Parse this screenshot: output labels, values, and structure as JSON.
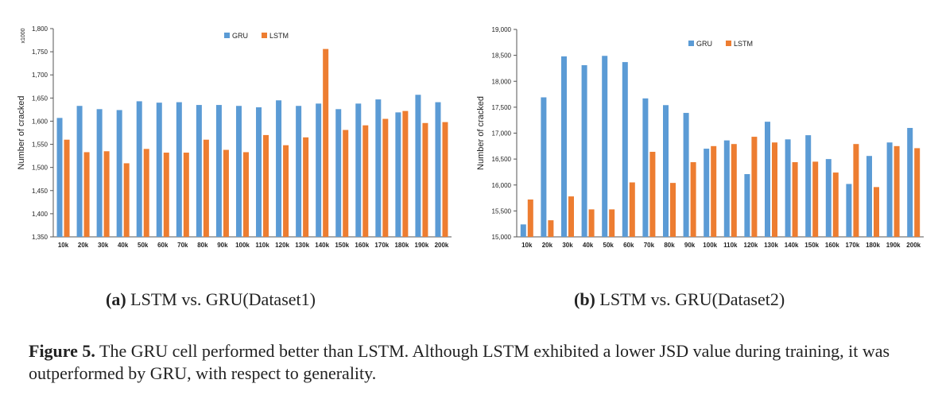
{
  "chart_data": [
    {
      "id": "a",
      "type": "bar",
      "ylabel": "Number of cracked",
      "y_unit": "x1000",
      "ylim": [
        1350,
        1800
      ],
      "yticks": [
        "1,350",
        "1,400",
        "1,450",
        "1,500",
        "1,550",
        "1,600",
        "1,650",
        "1,700",
        "1,750",
        "1,800"
      ],
      "ytick_values": [
        1350,
        1400,
        1450,
        1500,
        1550,
        1600,
        1650,
        1700,
        1750,
        1800
      ],
      "legend_position": "top-center",
      "categories": [
        "10k",
        "20k",
        "30k",
        "40k",
        "50k",
        "60k",
        "70k",
        "80k",
        "90k",
        "100k",
        "110k",
        "120k",
        "130k",
        "140k",
        "150k",
        "160k",
        "170k",
        "180k",
        "190k",
        "200k"
      ],
      "series": [
        {
          "name": "GRU",
          "color": "#5B9BD5",
          "values": [
            1607,
            1633,
            1626,
            1624,
            1643,
            1640,
            1641,
            1635,
            1635,
            1633,
            1630,
            1645,
            1633,
            1638,
            1626,
            1638,
            1647,
            1619,
            1657,
            1641
          ]
        },
        {
          "name": "LSTM",
          "color": "#ED7D31",
          "values": [
            1560,
            1533,
            1535,
            1509,
            1540,
            1532,
            1532,
            1560,
            1538,
            1533,
            1570,
            1548,
            1565,
            1756,
            1581,
            1591,
            1605,
            1622,
            1596,
            1598
          ]
        }
      ]
    },
    {
      "id": "b",
      "type": "bar",
      "ylabel": "Number of cracked",
      "ylim": [
        15000,
        19000
      ],
      "yticks": [
        "15,000",
        "15,500",
        "16,000",
        "16,500",
        "17,000",
        "17,500",
        "18,000",
        "18,500",
        "19,000"
      ],
      "ytick_values": [
        15000,
        15500,
        16000,
        16500,
        17000,
        17500,
        18000,
        18500,
        19000
      ],
      "legend_position": "top-center",
      "categories": [
        "10k",
        "20k",
        "30k",
        "40k",
        "50k",
        "60k",
        "70k",
        "80k",
        "90k",
        "100k",
        "110k",
        "120k",
        "130k",
        "140k",
        "150k",
        "160k",
        "170k",
        "180k",
        "190k",
        "200k"
      ],
      "series": [
        {
          "name": "GRU",
          "color": "#5B9BD5",
          "values": [
            15240,
            17690,
            18480,
            18310,
            18490,
            18370,
            17670,
            17540,
            17390,
            16700,
            16860,
            16210,
            17220,
            16880,
            16960,
            16500,
            16020,
            16560,
            16820,
            17100
          ]
        },
        {
          "name": "LSTM",
          "color": "#ED7D31",
          "values": [
            15720,
            15320,
            15780,
            15530,
            15530,
            16050,
            16640,
            16040,
            16440,
            16750,
            16790,
            16930,
            16820,
            16440,
            16450,
            16240,
            16790,
            15960,
            16750,
            16710
          ]
        }
      ]
    }
  ],
  "captions": {
    "a_label": "(a)",
    "a_text": " LSTM vs. GRU(Dataset1)",
    "b_label": "(b)",
    "b_text": " LSTM vs. GRU(Dataset2)",
    "figure_label": "Figure 5.",
    "figure_text": " The GRU cell performed better than LSTM. Although LSTM exhibited a lower JSD value during training, it was outperformed by GRU, with respect to generality."
  }
}
